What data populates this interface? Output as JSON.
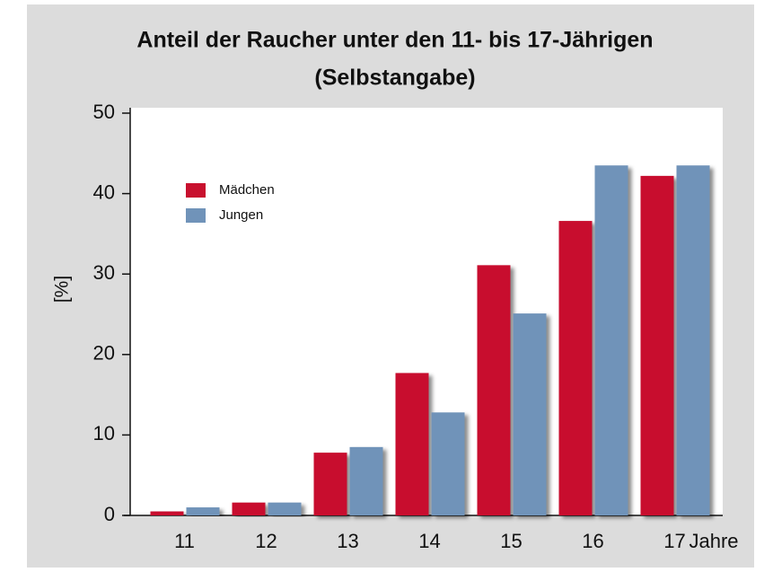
{
  "chart_data": {
    "type": "bar",
    "title": "Anteil der Raucher unter den 11- bis 17-Jährigen",
    "subtitle": "(Selbstangabe)",
    "ylabel": "[%]",
    "xlabel": "Jahre",
    "categories": [
      "11",
      "12",
      "13",
      "14",
      "15",
      "16",
      "17"
    ],
    "series": [
      {
        "name": "Mädchen",
        "color": "#c8102e",
        "values": [
          0.5,
          1.6,
          7.8,
          17.7,
          31.1,
          36.6,
          42.2
        ]
      },
      {
        "name": "Jungen",
        "color": "#7093b9",
        "values": [
          1,
          1.6,
          8.5,
          12.8,
          25.1,
          43.5,
          43.5
        ]
      }
    ],
    "ylim": [
      0,
      50
    ],
    "yticks": [
      0,
      10,
      20,
      30,
      40,
      50
    ],
    "legend": "upper left"
  }
}
